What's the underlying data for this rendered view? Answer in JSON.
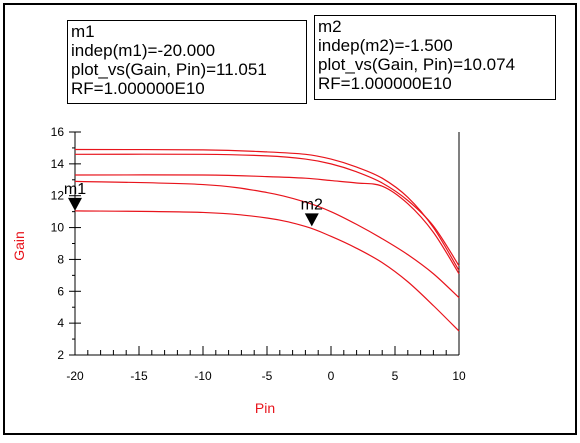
{
  "markers": [
    {
      "name": "m1",
      "indep": "indep(m1)=-20.000",
      "value": "plot_vs(Gain, Pin)=11.051",
      "freq": "RF=1.000000E10"
    },
    {
      "name": "m2",
      "indep": "indep(m2)=-1.500",
      "value": "plot_vs(Gain, Pin)=10.074",
      "freq": "RF=1.000000E10"
    }
  ],
  "chart_data": {
    "type": "line",
    "xlabel": "Pin",
    "ylabel": "Gain",
    "xlim": [
      -20,
      10
    ],
    "ylim": [
      2,
      16
    ],
    "x_ticks": [
      -20,
      -15,
      -10,
      -5,
      0,
      5,
      10
    ],
    "x_tick_labels": [
      "-20",
      "-15",
      "-10",
      "-5",
      "0",
      "5",
      "10"
    ],
    "y_ticks": [
      2,
      4,
      6,
      8,
      10,
      12,
      14,
      16
    ],
    "y_tick_labels": [
      "2",
      "4",
      "6",
      "8",
      "10",
      "12",
      "14",
      "16"
    ],
    "grid": false,
    "line_color": "#e8141c",
    "series": [
      {
        "x": [
          -20,
          -10,
          -5,
          -2,
          0,
          2,
          4,
          6,
          8,
          10
        ],
        "y": [
          14.9,
          14.88,
          14.75,
          14.6,
          14.3,
          13.8,
          13.1,
          11.9,
          10.0,
          7.3
        ]
      },
      {
        "x": [
          -20,
          -10,
          -5,
          -2,
          0,
          2,
          4,
          6,
          8,
          10
        ],
        "y": [
          14.6,
          14.6,
          14.5,
          14.3,
          14.0,
          13.5,
          12.8,
          11.7,
          10.1,
          7.6
        ]
      },
      {
        "x": [
          -20,
          -10,
          -5,
          -2,
          0,
          2,
          4,
          6,
          8,
          10
        ],
        "y": [
          13.3,
          13.3,
          13.2,
          13.1,
          12.95,
          12.8,
          12.6,
          11.5,
          9.7,
          7.1
        ]
      },
      {
        "x": [
          -20,
          -10,
          -5,
          -2,
          0,
          2,
          4,
          6,
          8,
          10
        ],
        "y": [
          12.9,
          12.7,
          12.2,
          11.6,
          11.0,
          10.2,
          9.3,
          8.3,
          7.1,
          5.6
        ]
      },
      {
        "x": [
          -20,
          -10,
          -5,
          -2,
          0,
          2,
          4,
          6,
          8,
          10
        ],
        "y": [
          11.05,
          10.95,
          10.6,
          10.07,
          9.45,
          8.7,
          7.8,
          6.6,
          5.1,
          3.5
        ]
      }
    ],
    "markers": [
      {
        "label": "m1",
        "x": -20,
        "y": 11.051
      },
      {
        "label": "m2",
        "x": -1.5,
        "y": 10.074
      }
    ]
  }
}
